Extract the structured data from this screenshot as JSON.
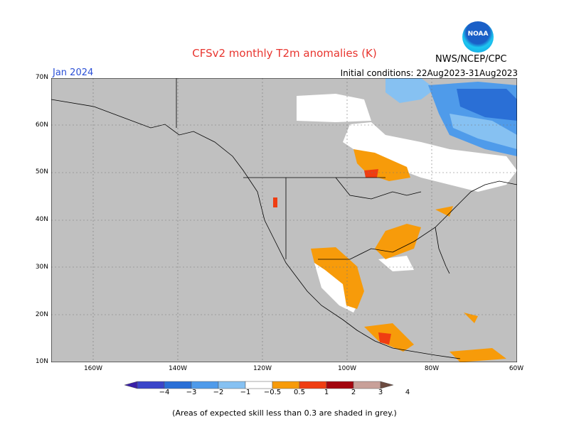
{
  "title": "CFSv2 monthly T2m anomalies (K)",
  "forecast_month": "Jan 2024",
  "initial_conditions": "Initial conditions: 22Aug2023-31Aug2023",
  "organization": "NWS/NCEP/CPC",
  "logo_text": "NOAA",
  "lat_labels": [
    "70N",
    "60N",
    "50N",
    "40N",
    "30N",
    "20N",
    "10N"
  ],
  "lon_labels": [
    "160W",
    "140W",
    "120W",
    "100W",
    "80W",
    "60W"
  ],
  "colorbar": {
    "tick_labels": [
      "−4",
      "−3",
      "−2",
      "−1",
      "−0.5",
      "0.5",
      "1",
      "2",
      "3",
      "4"
    ],
    "colors": [
      "#3a1fa8",
      "#3a45c9",
      "#2a6fd6",
      "#4f9bea",
      "#86c1f2",
      "#ffffff",
      "#f79b0a",
      "#ef3d12",
      "#a3050f",
      "#c8a099",
      "#6b4a3f"
    ]
  },
  "footnote": "(Areas of expected skill less than 0.3 are shaded in grey.)",
  "colors": {
    "land_grey": "#c0c0c0",
    "no_signal": "#ffffff"
  }
}
